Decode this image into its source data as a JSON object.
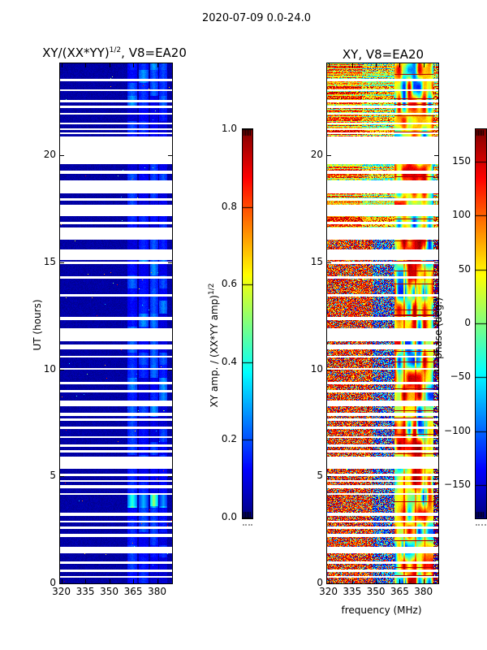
{
  "chart_data": {
    "figure_title": "2020-07-09 0.0-24.0",
    "type": "heatmap",
    "x_axis": {
      "label": "frequency (MHz)",
      "ticks": [
        320,
        335,
        350,
        365,
        380
      ],
      "range": [
        319.2,
        389.4
      ]
    },
    "y_axis": {
      "label": "UT (hours)",
      "ticks": [
        0,
        5,
        10,
        15,
        20
      ],
      "range": [
        0,
        24.3
      ]
    },
    "flagged_time_bands_hours": [
      [
        0.28,
        0.36
      ],
      [
        0.55,
        0.66
      ],
      [
        0.93,
        1.04
      ],
      [
        1.39,
        1.69
      ],
      [
        2.18,
        2.3
      ],
      [
        2.53,
        2.64
      ],
      [
        2.83,
        2.94
      ],
      [
        3.17,
        3.32
      ],
      [
        4.12,
        4.23
      ],
      [
        4.46,
        4.58
      ],
      [
        4.73,
        4.84
      ],
      [
        5.0,
        5.11
      ],
      [
        5.34,
        5.91
      ],
      [
        6.1,
        6.21
      ],
      [
        6.36,
        6.48
      ],
      [
        6.78,
        6.89
      ],
      [
        7.2,
        7.31
      ],
      [
        7.58,
        7.69
      ],
      [
        7.84,
        7.96
      ],
      [
        8.26,
        8.56
      ],
      [
        8.91,
        9.02
      ],
      [
        9.29,
        9.4
      ],
      [
        9.97,
        10.08
      ],
      [
        10.54,
        10.65
      ],
      [
        10.92,
        11.15
      ],
      [
        11.3,
        11.91
      ],
      [
        12.29,
        12.44
      ],
      [
        13.39,
        13.5
      ],
      [
        14.22,
        14.34
      ],
      [
        14.91,
        15.02
      ],
      [
        15.1,
        15.59
      ],
      [
        16.05,
        16.62
      ],
      [
        16.77,
        16.88
      ],
      [
        17.15,
        17.71
      ],
      [
        17.87,
        17.98
      ],
      [
        18.21,
        18.82
      ],
      [
        19.12,
        19.27
      ],
      [
        19.58,
        20.87
      ],
      [
        20.98,
        21.06
      ],
      [
        21.17,
        21.25
      ],
      [
        21.44,
        21.52
      ],
      [
        21.9,
        21.97
      ],
      [
        22.2,
        22.31
      ],
      [
        22.47,
        22.58
      ],
      [
        23.0,
        23.07
      ],
      [
        23.45,
        23.57
      ]
    ],
    "panels": [
      {
        "type": "heatmap",
        "name": "normalized amplitude",
        "title_pre": "XY/(XX*YY)",
        "title_sup": "1/2",
        "title_post": ", V8=EA20",
        "colormap": "jet",
        "value_range": [
          0,
          1
        ],
        "background_value": 0.04,
        "rfi_sub_bands_mhz": [
          [
            361.5,
            367.5
          ],
          [
            368.5,
            374.5
          ],
          [
            375.5,
            380.5
          ],
          [
            381.5,
            386.5
          ]
        ],
        "rfi_typical_value": 0.17,
        "bright_feature": {
          "hours": [
            3.55,
            4.2
          ],
          "freq_mhz": [
            361.5,
            386.5
          ],
          "value": 0.5
        },
        "colorbar": {
          "label_pre": "XY amp. / (XX*YY amp)",
          "label_sup": "1/2",
          "tick_labels": [
            "0.0",
            "0.2",
            "0.4",
            "0.6",
            "0.8",
            "1.0"
          ],
          "tick_values": [
            0,
            0.2,
            0.4,
            0.6,
            0.8,
            1.0
          ],
          "range": [
            0,
            1
          ]
        },
        "description": "Mostly dark blue (amp ~0.02-0.08); brighter blue RFI band 362-386 MHz (~0.1-0.3, blocky in time); bright cyan patch ~0.5 near 3.6-4.2 h; white horizontal rows are flagged times."
      },
      {
        "type": "heatmap",
        "name": "phase",
        "title_pre": "XY, V8=EA20",
        "title_sup": "",
        "title_post": "",
        "colormap": "jet",
        "value_range": [
          -180,
          180
        ],
        "regions": [
          {
            "freq_mhz": [
              319.2,
              348.0
            ],
            "character": "noisy",
            "dominant_phase_deg": 135,
            "outlier_fraction": 0.25
          },
          {
            "freq_mhz": [
              348.0,
              361.5
            ],
            "character": "noisy",
            "dominant_phase_deg": -115,
            "outlier_fraction": 0.4
          },
          {
            "freq_mhz": [
              361.5,
              386.5
            ],
            "character": "smooth-patches",
            "phase_palette_deg": [
              50,
              150,
              -100,
              0
            ]
          },
          {
            "freq_mhz": [
              386.5,
              389.4
            ],
            "character": "mixed-strong",
            "phase_palette_deg": [
              165,
              -165,
              0
            ]
          }
        ],
        "colorbar": {
          "label_pre": "phase (deg.)",
          "label_sup": "",
          "tick_labels": [
            "150",
            "100",
            "50",
            "0",
            "−50",
            "−100",
            "−150"
          ],
          "tick_values": [
            150,
            100,
            50,
            0,
            -50,
            -100,
            -150
          ],
          "range": [
            -180,
            180
          ]
        },
        "description": "Noisy orange/red phases (~+90..180 deg) below 348 MHz; noisy blue (~-180..-60 deg) 348-362 MHz; smooth colorful coherent patches 362-386 MHz; strong red/blue mix at top edge of band; same flagged white rows as left panel."
      }
    ]
  }
}
